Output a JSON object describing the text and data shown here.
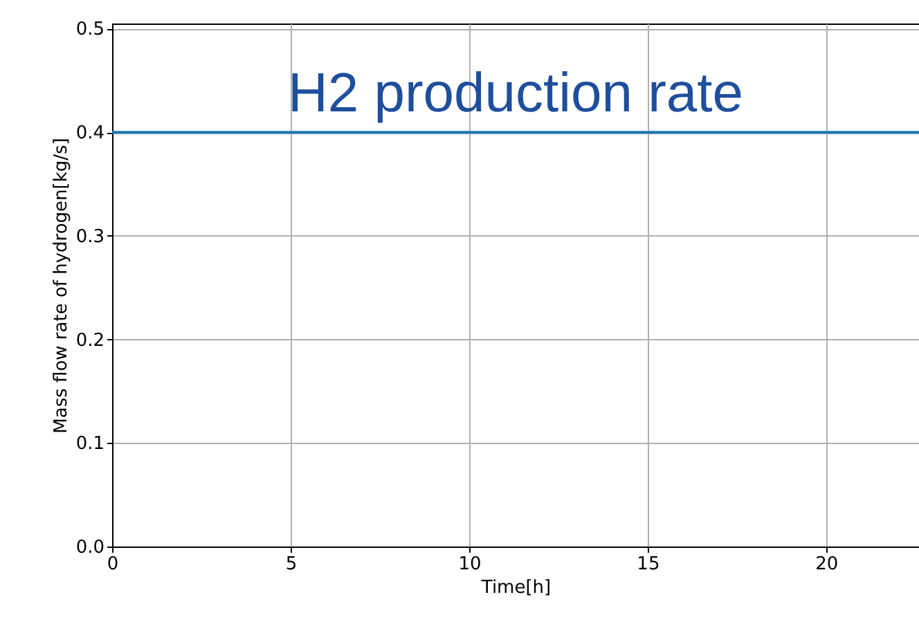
{
  "chart_data": {
    "type": "line",
    "title": "H2 production rate",
    "xlabel": "Time[h]",
    "ylabel": "Mass flow rate of hydrogen[kg/s]",
    "x": [
      0,
      22.6
    ],
    "series": [
      {
        "color": "#1f77b4",
        "values": [
          0.4,
          0.4
        ]
      }
    ],
    "xlim": [
      0,
      22.6
    ],
    "xticks": [
      0,
      5,
      10,
      15,
      20
    ],
    "ylim": [
      0,
      0.505
    ],
    "yticks": [
      {
        "value": 0,
        "label": "0.0"
      },
      0.1,
      0.2,
      0.3,
      0.4,
      0.5
    ],
    "grid": true,
    "marker": "none",
    "line_style": "solid"
  }
}
